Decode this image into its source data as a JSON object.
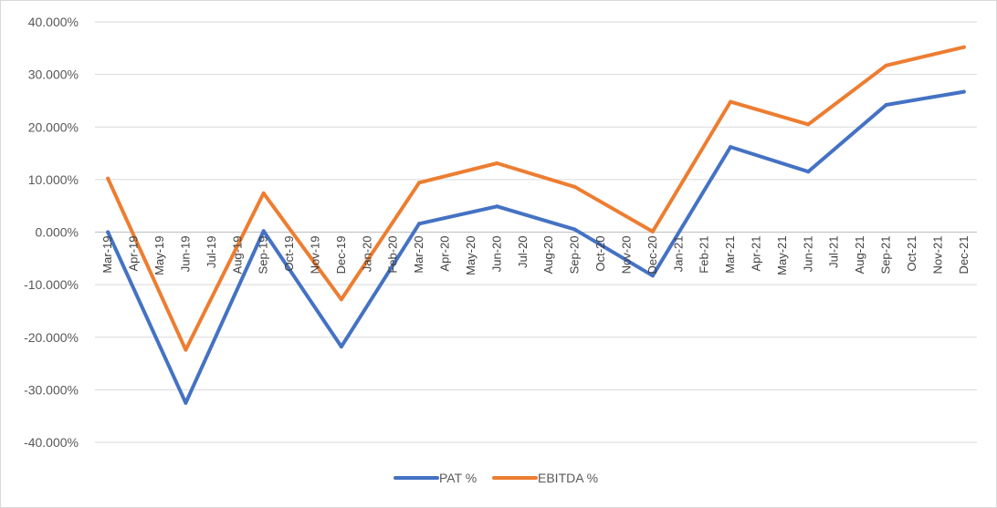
{
  "chart_data": {
    "type": "line",
    "y_tick_labels": [
      "40.000%",
      "30.000%",
      "20.000%",
      "10.000%",
      "0.000%",
      "-10.000%",
      "-20.000%",
      "-30.000%",
      "-40.000%"
    ],
    "ylim": [
      -40,
      40
    ],
    "y_unit": "%",
    "grid": true,
    "legend_position": "bottom",
    "categories": [
      "Mar-19",
      "Apr-19",
      "May-19",
      "Jun-19",
      "Jul-19",
      "Aug-19",
      "Sep-19",
      "Oct-19",
      "Nov-19",
      "Dec-19",
      "Jan-20",
      "Feb-20",
      "Mar-20",
      "Apr-20",
      "May-20",
      "Jun-20",
      "Jul-20",
      "Aug-20",
      "Sep-20",
      "Oct-20",
      "Nov-20",
      "Dec-20",
      "Jan-21",
      "Feb-21",
      "Mar-21",
      "Apr-21",
      "May-21",
      "Jun-21",
      "Jul-21",
      "Aug-21",
      "Sep-21",
      "Oct-21",
      "Nov-21",
      "Dec-21"
    ],
    "series": [
      {
        "name": "PAT %",
        "color": "#4472c4",
        "values": [
          0.0,
          null,
          null,
          -32.5,
          null,
          null,
          0.2,
          null,
          null,
          -21.8,
          null,
          null,
          1.6,
          null,
          null,
          4.9,
          null,
          null,
          0.5,
          null,
          null,
          -8.3,
          null,
          null,
          16.2,
          null,
          null,
          11.5,
          null,
          null,
          24.2,
          null,
          null,
          26.7
        ]
      },
      {
        "name": "EBITDA %",
        "color": "#ed7d31",
        "values": [
          10.2,
          null,
          null,
          -22.4,
          null,
          null,
          7.4,
          null,
          null,
          -12.8,
          null,
          null,
          9.4,
          null,
          null,
          13.1,
          null,
          null,
          8.6,
          null,
          null,
          0.1,
          null,
          null,
          24.8,
          null,
          null,
          20.5,
          null,
          null,
          31.7,
          null,
          null,
          35.2
        ]
      }
    ]
  }
}
